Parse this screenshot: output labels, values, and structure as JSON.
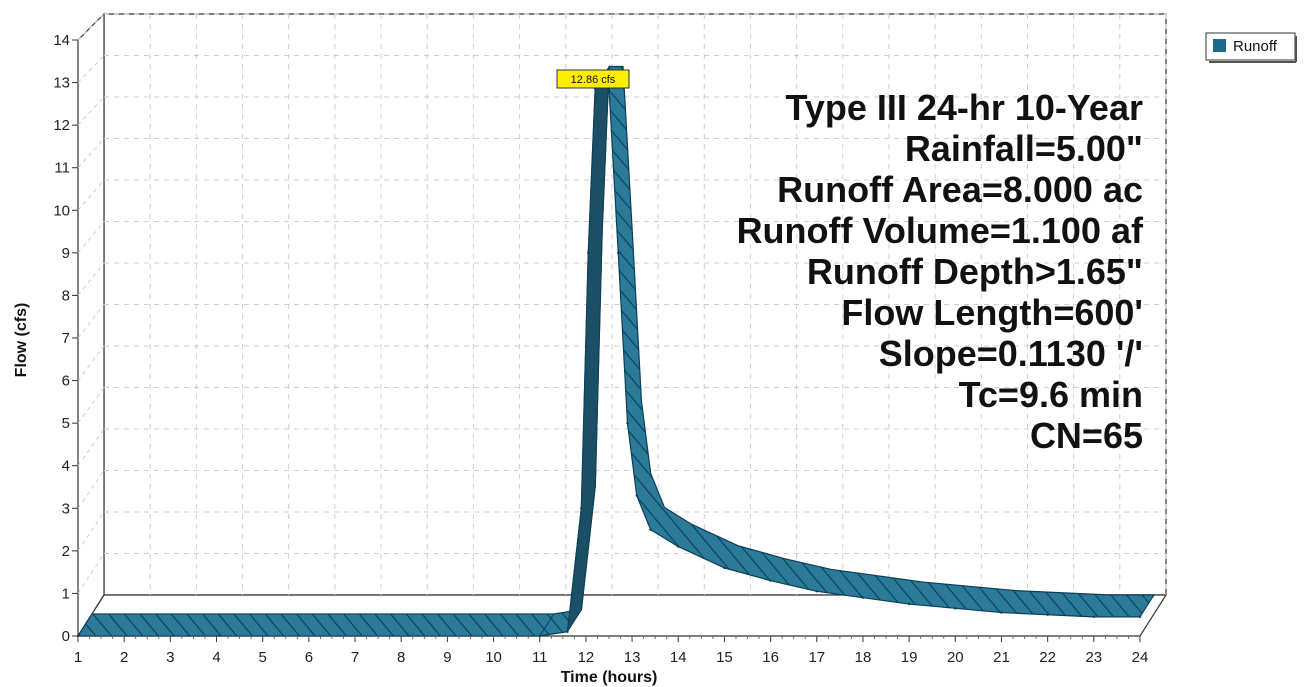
{
  "chart_data": {
    "type": "area",
    "title": "",
    "xlabel": "Time (hours)",
    "ylabel": "Flow (cfs)",
    "xlim": [
      1,
      24
    ],
    "ylim": [
      0,
      14
    ],
    "x_ticks": [
      1,
      2,
      3,
      4,
      5,
      6,
      7,
      8,
      9,
      10,
      11,
      12,
      13,
      14,
      15,
      16,
      17,
      18,
      19,
      20,
      21,
      22,
      23,
      24
    ],
    "y_ticks": [
      0,
      1,
      2,
      3,
      4,
      5,
      6,
      7,
      8,
      9,
      10,
      11,
      12,
      13,
      14
    ],
    "grid": true,
    "legend_position": "top-right",
    "series": [
      {
        "name": "Runoff",
        "color": "#2a7a98",
        "x": [
          1,
          11.0,
          11.6,
          11.9,
          12.05,
          12.2,
          12.5,
          12.7,
          12.9,
          13.1,
          13.4,
          14,
          15,
          16,
          17,
          18,
          19,
          20,
          21,
          22,
          23,
          24
        ],
        "y": [
          0,
          0,
          0.1,
          3.0,
          9.0,
          12.86,
          12.86,
          9.0,
          5.0,
          3.3,
          2.5,
          2.1,
          1.6,
          1.3,
          1.05,
          0.9,
          0.75,
          0.65,
          0.55,
          0.5,
          0.45,
          0.45
        ]
      }
    ],
    "peak_label": "12.86 cfs",
    "annotations": [
      "Type III 24-hr 10-Year",
      "Rainfall=5.00\"",
      "Runoff Area=8.000 ac",
      "Runoff Volume=1.100 af",
      "Runoff Depth>1.65\"",
      "Flow Length=600'",
      "Slope=0.1130 '/'",
      "Tc=9.6 min",
      "CN=65"
    ]
  }
}
